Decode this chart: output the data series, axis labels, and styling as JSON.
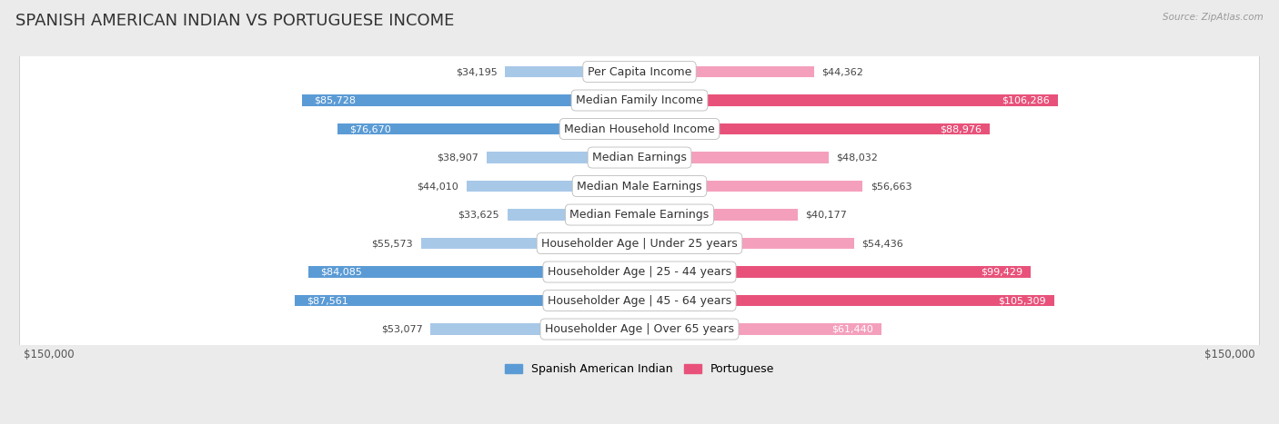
{
  "title": "SPANISH AMERICAN INDIAN VS PORTUGUESE INCOME",
  "source": "Source: ZipAtlas.com",
  "categories": [
    "Per Capita Income",
    "Median Family Income",
    "Median Household Income",
    "Median Earnings",
    "Median Male Earnings",
    "Median Female Earnings",
    "Householder Age | Under 25 years",
    "Householder Age | 25 - 44 years",
    "Householder Age | 45 - 64 years",
    "Householder Age | Over 65 years"
  ],
  "spanish_values": [
    34195,
    85728,
    76670,
    38907,
    44010,
    33625,
    55573,
    84085,
    87561,
    53077
  ],
  "portuguese_values": [
    44362,
    106286,
    88976,
    48032,
    56663,
    40177,
    54436,
    99429,
    105309,
    61440
  ],
  "spanish_color_dark": "#5b9bd5",
  "spanish_color_light": "#a8c8e8",
  "portuguese_color_dark": "#e8527a",
  "portuguese_color_light": "#f4a0bc",
  "max_val": 150000,
  "dark_threshold": 70000,
  "legend_spanish": "Spanish American Indian",
  "legend_portuguese": "Portuguese",
  "background_color": "#ebebeb",
  "row_bg": "#ffffff",
  "row_border": "#cccccc",
  "title_fontsize": 13,
  "label_fontsize": 9,
  "value_fontsize": 8,
  "axis_label_fontsize": 8.5,
  "inside_text_threshold": 60000
}
